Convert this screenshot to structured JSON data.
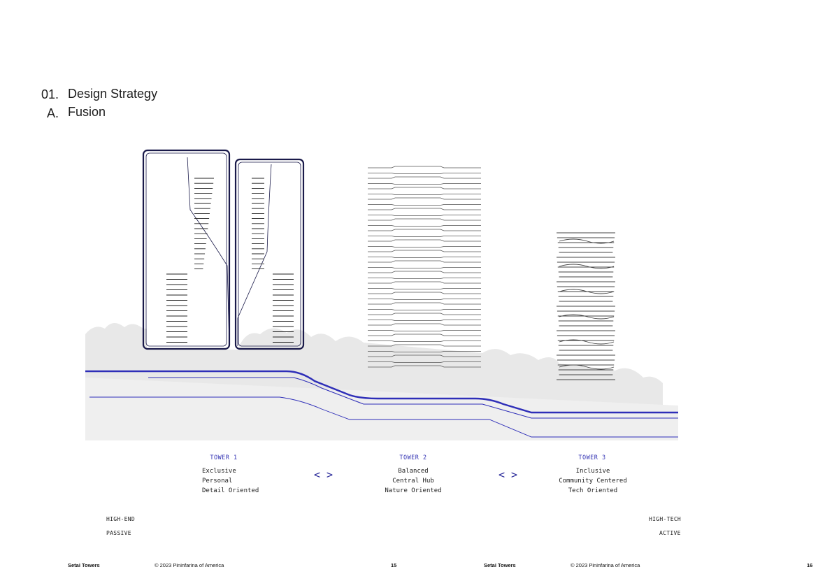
{
  "heading": {
    "section_number": "01.",
    "section_title": "Design Strategy",
    "sub_letter": "A.",
    "sub_title": "Fusion"
  },
  "towers": [
    {
      "label": "TOWER 1",
      "lines": [
        "Exclusive",
        "Personal",
        "Detail Oriented"
      ]
    },
    {
      "label": "TOWER 2",
      "lines": [
        "Balanced",
        "Central Hub",
        "Nature Oriented"
      ]
    },
    {
      "label": "TOWER 3",
      "lines": [
        "Inclusive",
        "Community Centered",
        "Tech Oriented"
      ]
    }
  ],
  "connector_symbol": "< >",
  "scale": {
    "left_top": "HIGH-END",
    "left_bottom": "PASSIVE",
    "right_top": "HIGH-TECH",
    "right_bottom": "ACTIVE"
  },
  "footer": {
    "left_project": "Setai Towers",
    "left_copyright": "© 2023 Pininfarina of America",
    "left_page": "15",
    "right_project": "Setai Towers",
    "right_copyright": "© 2023 Pininfarina of America",
    "right_page": "16"
  },
  "colors": {
    "accent_blue": "#2e2eb8",
    "tower_outline": "#1a1a4a",
    "foliage": "#e6e6e6"
  }
}
